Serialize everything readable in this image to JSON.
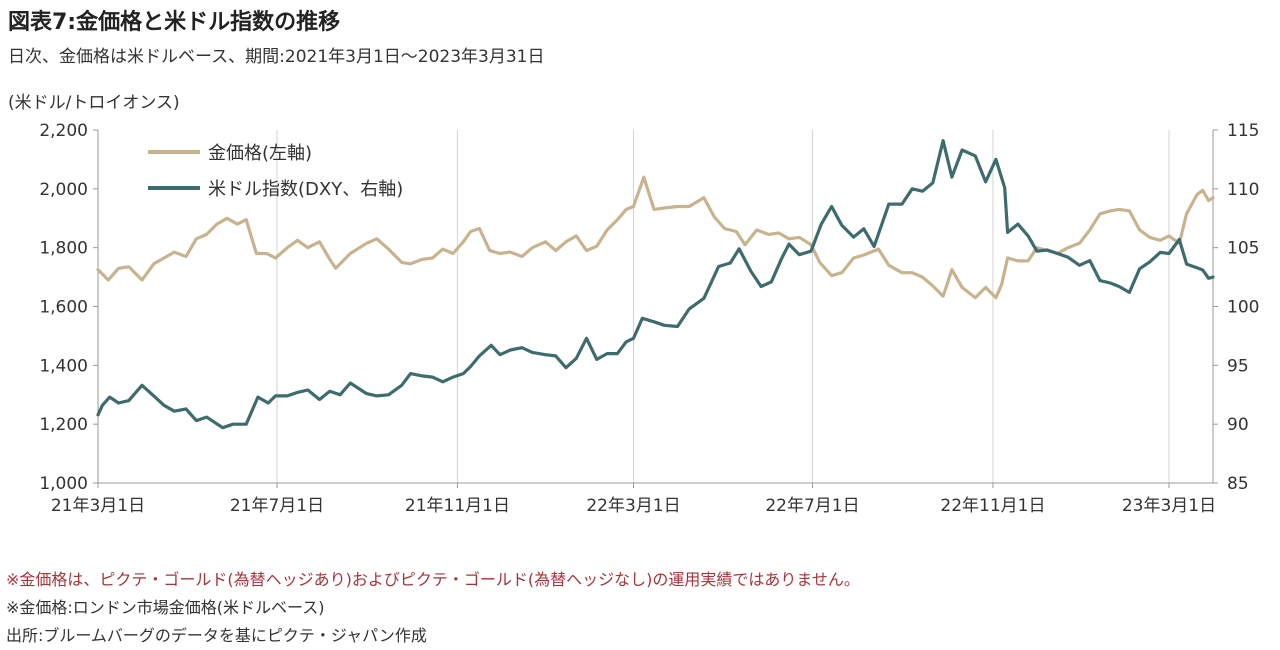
{
  "title": "図表7:金価格と米ドル指数の推移",
  "subtitle": "日次、金価格は米ドルベース、期間:2021年3月1日〜2023年3月31日",
  "notes": [
    "※金価格は、ピクテ・ゴールド(為替ヘッジあり)およびピクテ・ゴールド(為替ヘッジなし)の運用実績ではありません。",
    "※金価格:ロンドン市場金価格(米ドルベース)",
    "出所:ブルームバーグのデータを基にピクテ・ジャパン作成"
  ],
  "chart_data": {
    "type": "line",
    "ylabel_left": "(米ドル/トロイオンス)",
    "ylim_left": [
      1000,
      2200
    ],
    "yticks_left": [
      "1,000",
      "1,200",
      "1,400",
      "1,600",
      "1,800",
      "2,000",
      "2,200"
    ],
    "ylim_right": [
      85,
      115
    ],
    "yticks_right": [
      "85",
      "90",
      "95",
      "100",
      "105",
      "110",
      "115"
    ],
    "x_tick_labels": [
      "21年3月1日",
      "21年7月1日",
      "21年11月1日",
      "22年3月1日",
      "22年7月1日",
      "22年11月1日",
      "23年3月1日"
    ],
    "x_period": [
      "2021-03-01",
      "2023-03-31"
    ],
    "grid": "vertical",
    "legend_position": "top-left",
    "colors": {
      "gold": "#c9b38e",
      "dxy": "#3e6b6e",
      "axis": "#999999",
      "grid": "#d4d4d4"
    },
    "series": [
      {
        "name": "金価格(左軸)",
        "axis": "left",
        "points": [
          [
            "2021-03-01",
            1725
          ],
          [
            "2021-03-08",
            1690
          ],
          [
            "2021-03-15",
            1730
          ],
          [
            "2021-03-22",
            1735
          ],
          [
            "2021-03-31",
            1690
          ],
          [
            "2021-04-08",
            1745
          ],
          [
            "2021-04-15",
            1765
          ],
          [
            "2021-04-22",
            1785
          ],
          [
            "2021-04-30",
            1770
          ],
          [
            "2021-05-07",
            1830
          ],
          [
            "2021-05-14",
            1845
          ],
          [
            "2021-05-21",
            1880
          ],
          [
            "2021-05-28",
            1900
          ],
          [
            "2021-06-04",
            1880
          ],
          [
            "2021-06-10",
            1895
          ],
          [
            "2021-06-17",
            1780
          ],
          [
            "2021-06-24",
            1780
          ],
          [
            "2021-06-30",
            1765
          ],
          [
            "2021-07-08",
            1800
          ],
          [
            "2021-07-15",
            1825
          ],
          [
            "2021-07-22",
            1800
          ],
          [
            "2021-07-30",
            1820
          ],
          [
            "2021-08-06",
            1760
          ],
          [
            "2021-08-10",
            1730
          ],
          [
            "2021-08-20",
            1780
          ],
          [
            "2021-08-31",
            1815
          ],
          [
            "2021-09-07",
            1830
          ],
          [
            "2021-09-15",
            1795
          ],
          [
            "2021-09-24",
            1750
          ],
          [
            "2021-09-30",
            1745
          ],
          [
            "2021-10-08",
            1760
          ],
          [
            "2021-10-15",
            1765
          ],
          [
            "2021-10-22",
            1795
          ],
          [
            "2021-10-29",
            1780
          ],
          [
            "2021-11-05",
            1820
          ],
          [
            "2021-11-10",
            1855
          ],
          [
            "2021-11-16",
            1865
          ],
          [
            "2021-11-23",
            1790
          ],
          [
            "2021-11-30",
            1780
          ],
          [
            "2021-12-07",
            1785
          ],
          [
            "2021-12-15",
            1770
          ],
          [
            "2021-12-22",
            1800
          ],
          [
            "2021-12-31",
            1820
          ],
          [
            "2022-01-07",
            1790
          ],
          [
            "2022-01-14",
            1820
          ],
          [
            "2022-01-21",
            1840
          ],
          [
            "2022-01-28",
            1790
          ],
          [
            "2022-02-04",
            1805
          ],
          [
            "2022-02-11",
            1860
          ],
          [
            "2022-02-18",
            1895
          ],
          [
            "2022-02-24",
            1930
          ],
          [
            "2022-03-01",
            1940
          ],
          [
            "2022-03-08",
            2040
          ],
          [
            "2022-03-15",
            1930
          ],
          [
            "2022-03-22",
            1935
          ],
          [
            "2022-03-31",
            1940
          ],
          [
            "2022-04-08",
            1940
          ],
          [
            "2022-04-18",
            1970
          ],
          [
            "2022-04-25",
            1905
          ],
          [
            "2022-05-02",
            1865
          ],
          [
            "2022-05-10",
            1855
          ],
          [
            "2022-05-16",
            1810
          ],
          [
            "2022-05-24",
            1860
          ],
          [
            "2022-06-01",
            1845
          ],
          [
            "2022-06-08",
            1850
          ],
          [
            "2022-06-15",
            1830
          ],
          [
            "2022-06-22",
            1835
          ],
          [
            "2022-06-30",
            1810
          ],
          [
            "2022-07-06",
            1750
          ],
          [
            "2022-07-14",
            1705
          ],
          [
            "2022-07-21",
            1715
          ],
          [
            "2022-07-29",
            1765
          ],
          [
            "2022-08-05",
            1775
          ],
          [
            "2022-08-15",
            1795
          ],
          [
            "2022-08-22",
            1740
          ],
          [
            "2022-08-31",
            1715
          ],
          [
            "2022-09-07",
            1715
          ],
          [
            "2022-09-14",
            1700
          ],
          [
            "2022-09-21",
            1670
          ],
          [
            "2022-09-28",
            1635
          ],
          [
            "2022-10-04",
            1725
          ],
          [
            "2022-10-11",
            1665
          ],
          [
            "2022-10-20",
            1630
          ],
          [
            "2022-10-27",
            1665
          ],
          [
            "2022-11-03",
            1630
          ],
          [
            "2022-11-07",
            1675
          ],
          [
            "2022-11-11",
            1765
          ],
          [
            "2022-11-18",
            1755
          ],
          [
            "2022-11-25",
            1755
          ],
          [
            "2022-12-01",
            1800
          ],
          [
            "2022-12-08",
            1790
          ],
          [
            "2022-12-15",
            1780
          ],
          [
            "2022-12-22",
            1800
          ],
          [
            "2022-12-30",
            1815
          ],
          [
            "2023-01-06",
            1860
          ],
          [
            "2023-01-13",
            1915
          ],
          [
            "2023-01-20",
            1925
          ],
          [
            "2023-01-26",
            1930
          ],
          [
            "2023-02-02",
            1925
          ],
          [
            "2023-02-09",
            1860
          ],
          [
            "2023-02-16",
            1835
          ],
          [
            "2023-02-23",
            1825
          ],
          [
            "2023-03-01",
            1840
          ],
          [
            "2023-03-08",
            1815
          ],
          [
            "2023-03-13",
            1915
          ],
          [
            "2023-03-20",
            1980
          ],
          [
            "2023-03-24",
            1995
          ],
          [
            "2023-03-28",
            1960
          ],
          [
            "2023-03-31",
            1970
          ]
        ]
      },
      {
        "name": "米ドル指数(DXY、右軸)",
        "axis": "right",
        "points": [
          [
            "2021-03-01",
            90.8
          ],
          [
            "2021-03-04",
            91.6
          ],
          [
            "2021-03-09",
            92.3
          ],
          [
            "2021-03-15",
            91.8
          ],
          [
            "2021-03-22",
            92.0
          ],
          [
            "2021-03-31",
            93.3
          ],
          [
            "2021-04-08",
            92.4
          ],
          [
            "2021-04-15",
            91.6
          ],
          [
            "2021-04-22",
            91.1
          ],
          [
            "2021-04-30",
            91.3
          ],
          [
            "2021-05-07",
            90.3
          ],
          [
            "2021-05-14",
            90.6
          ],
          [
            "2021-05-25",
            89.7
          ],
          [
            "2021-06-01",
            90.0
          ],
          [
            "2021-06-10",
            90.0
          ],
          [
            "2021-06-18",
            92.3
          ],
          [
            "2021-06-25",
            91.8
          ],
          [
            "2021-06-30",
            92.4
          ],
          [
            "2021-07-08",
            92.4
          ],
          [
            "2021-07-15",
            92.7
          ],
          [
            "2021-07-22",
            92.9
          ],
          [
            "2021-07-30",
            92.1
          ],
          [
            "2021-08-06",
            92.8
          ],
          [
            "2021-08-13",
            92.5
          ],
          [
            "2021-08-20",
            93.5
          ],
          [
            "2021-08-31",
            92.6
          ],
          [
            "2021-09-07",
            92.4
          ],
          [
            "2021-09-15",
            92.5
          ],
          [
            "2021-09-24",
            93.3
          ],
          [
            "2021-09-30",
            94.3
          ],
          [
            "2021-10-08",
            94.1
          ],
          [
            "2021-10-15",
            94.0
          ],
          [
            "2021-10-22",
            93.6
          ],
          [
            "2021-10-29",
            94.0
          ],
          [
            "2021-11-05",
            94.3
          ],
          [
            "2021-11-10",
            94.9
          ],
          [
            "2021-11-16",
            95.8
          ],
          [
            "2021-11-24",
            96.7
          ],
          [
            "2021-11-30",
            95.9
          ],
          [
            "2021-12-07",
            96.3
          ],
          [
            "2021-12-15",
            96.5
          ],
          [
            "2021-12-22",
            96.1
          ],
          [
            "2021-12-31",
            95.9
          ],
          [
            "2022-01-07",
            95.8
          ],
          [
            "2022-01-14",
            94.8
          ],
          [
            "2022-01-21",
            95.6
          ],
          [
            "2022-01-28",
            97.3
          ],
          [
            "2022-02-04",
            95.5
          ],
          [
            "2022-02-11",
            96.0
          ],
          [
            "2022-02-18",
            96.0
          ],
          [
            "2022-02-24",
            97.0
          ],
          [
            "2022-03-01",
            97.3
          ],
          [
            "2022-03-07",
            99.0
          ],
          [
            "2022-03-15",
            98.7
          ],
          [
            "2022-03-22",
            98.4
          ],
          [
            "2022-03-31",
            98.3
          ],
          [
            "2022-04-08",
            99.8
          ],
          [
            "2022-04-18",
            100.7
          ],
          [
            "2022-04-28",
            103.4
          ],
          [
            "2022-05-06",
            103.7
          ],
          [
            "2022-05-12",
            104.9
          ],
          [
            "2022-05-20",
            103.0
          ],
          [
            "2022-05-27",
            101.7
          ],
          [
            "2022-06-03",
            102.1
          ],
          [
            "2022-06-10",
            104.1
          ],
          [
            "2022-06-15",
            105.3
          ],
          [
            "2022-06-22",
            104.4
          ],
          [
            "2022-06-30",
            104.7
          ],
          [
            "2022-07-07",
            107.0
          ],
          [
            "2022-07-14",
            108.5
          ],
          [
            "2022-07-21",
            106.9
          ],
          [
            "2022-07-29",
            105.9
          ],
          [
            "2022-08-05",
            106.6
          ],
          [
            "2022-08-12",
            105.1
          ],
          [
            "2022-08-22",
            108.7
          ],
          [
            "2022-08-31",
            108.7
          ],
          [
            "2022-09-07",
            110.0
          ],
          [
            "2022-09-14",
            109.8
          ],
          [
            "2022-09-21",
            110.5
          ],
          [
            "2022-09-28",
            114.1
          ],
          [
            "2022-10-04",
            111.0
          ],
          [
            "2022-10-11",
            113.3
          ],
          [
            "2022-10-20",
            112.8
          ],
          [
            "2022-10-27",
            110.6
          ],
          [
            "2022-11-03",
            112.5
          ],
          [
            "2022-11-09",
            110.1
          ],
          [
            "2022-11-11",
            106.3
          ],
          [
            "2022-11-18",
            107.0
          ],
          [
            "2022-11-25",
            106.0
          ],
          [
            "2022-12-01",
            104.7
          ],
          [
            "2022-12-08",
            104.8
          ],
          [
            "2022-12-15",
            104.5
          ],
          [
            "2022-12-22",
            104.2
          ],
          [
            "2022-12-30",
            103.5
          ],
          [
            "2023-01-06",
            103.9
          ],
          [
            "2023-01-13",
            102.2
          ],
          [
            "2023-01-20",
            102.0
          ],
          [
            "2023-01-26",
            101.7
          ],
          [
            "2023-02-02",
            101.2
          ],
          [
            "2023-02-09",
            103.2
          ],
          [
            "2023-02-16",
            103.8
          ],
          [
            "2023-02-23",
            104.6
          ],
          [
            "2023-03-01",
            104.5
          ],
          [
            "2023-03-08",
            105.7
          ],
          [
            "2023-03-13",
            103.6
          ],
          [
            "2023-03-20",
            103.3
          ],
          [
            "2023-03-24",
            103.1
          ],
          [
            "2023-03-28",
            102.4
          ],
          [
            "2023-03-31",
            102.5
          ]
        ]
      }
    ]
  }
}
